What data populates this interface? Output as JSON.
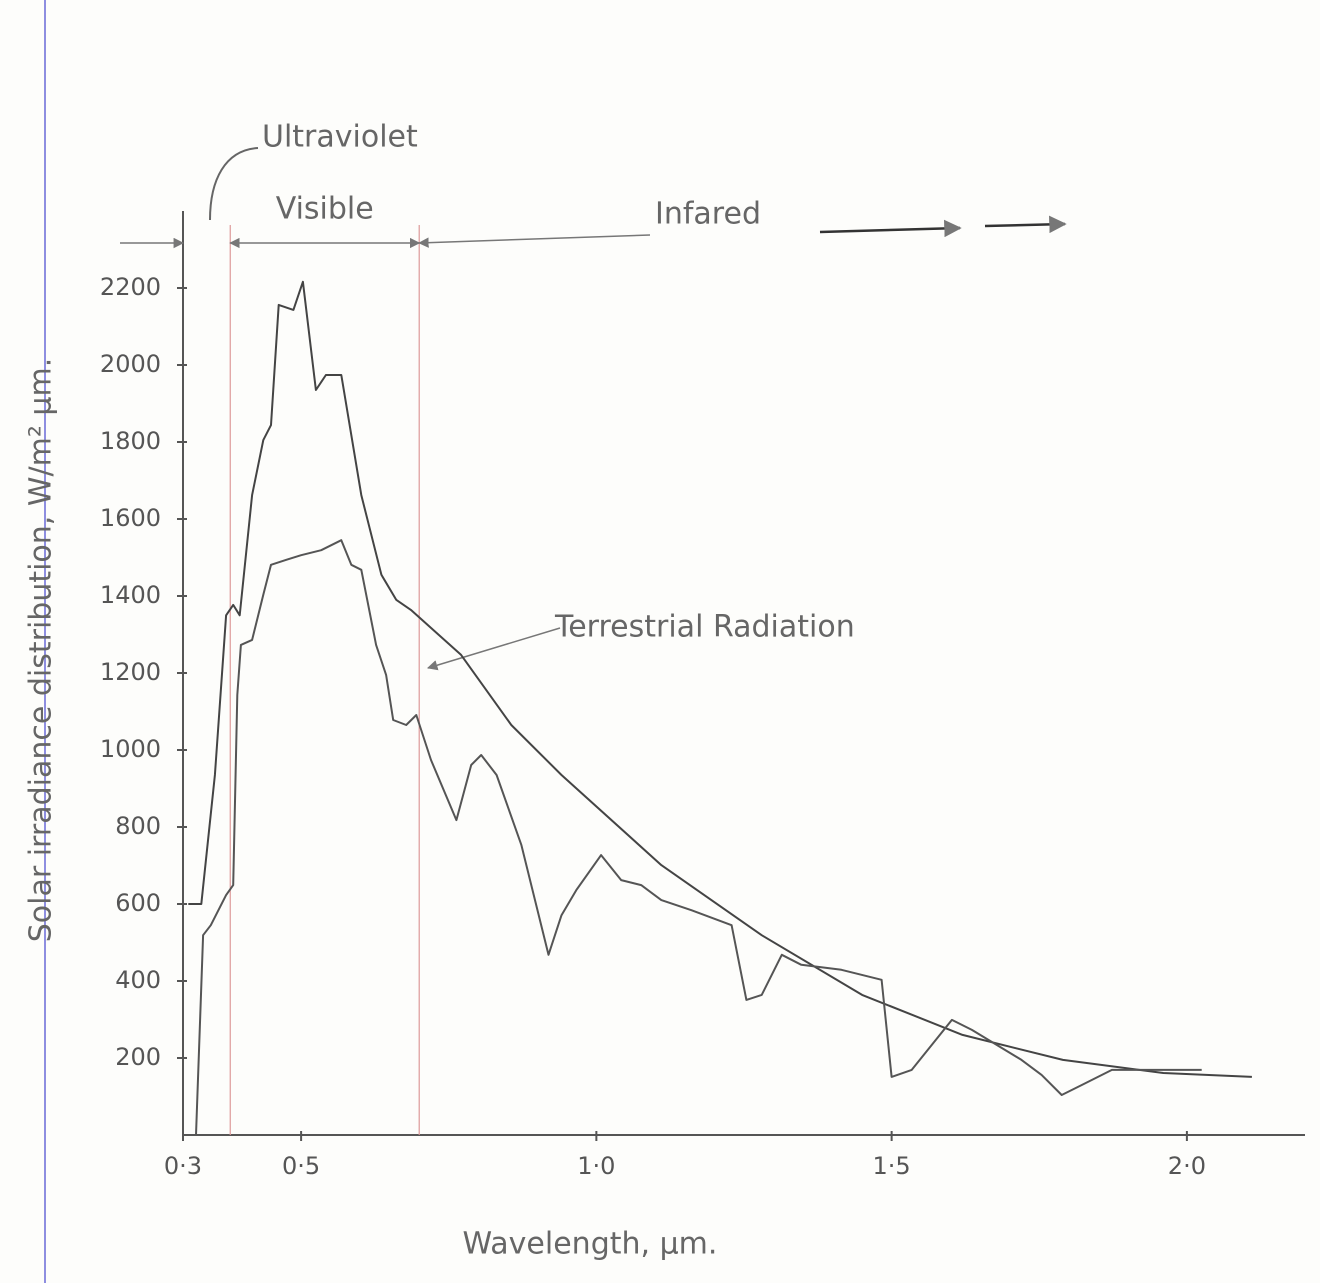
{
  "chart_data": {
    "type": "line",
    "y_label": "Solar irradiance distribution, W/m² µm.",
    "x_label": "Wavelength, µm.",
    "xlim": [
      0.3,
      2.2
    ],
    "ylim": [
      0,
      2400
    ],
    "xticks": [
      {
        "value": 0.3,
        "label": "0·3"
      },
      {
        "value": 0.5,
        "label": "0·5"
      },
      {
        "value": 1.0,
        "label": "1·0"
      },
      {
        "value": 1.5,
        "label": "1·5"
      },
      {
        "value": 2.0,
        "label": "2·0"
      }
    ],
    "yticks": [
      200,
      400,
      600,
      800,
      1000,
      1200,
      1400,
      1600,
      1800,
      2000,
      2200
    ],
    "region_bounds": [
      0.38,
      0.7
    ],
    "annotations": {
      "ultraviolet": "Ultraviolet",
      "visible": "Visible",
      "infrared": "Infared",
      "terrestrial": "Terrestrial Radiation"
    },
    "series": [
      {
        "color": "#444",
        "x": [
          0.309,
          0.331,
          0.354,
          0.373,
          0.385,
          0.396,
          0.417,
          0.436,
          0.449,
          0.462,
          0.487,
          0.503,
          0.525,
          0.542,
          0.568,
          0.602,
          0.636,
          0.661,
          0.686,
          0.771,
          0.856,
          0.941,
          1.11,
          1.28,
          1.45,
          1.62,
          1.79,
          1.96,
          2.11
        ],
        "values": [
          600,
          600,
          935,
          1350,
          1377,
          1350,
          1662,
          1805,
          1844,
          2156,
          2143,
          2216,
          1935,
          1974,
          1974,
          1662,
          1455,
          1390,
          1364,
          1247,
          1065,
          935,
          701,
          519,
          364,
          260,
          195,
          161,
          151
        ]
      },
      {
        "color": "#555",
        "x": [
          0.322,
          0.334,
          0.347,
          0.373,
          0.385,
          0.392,
          0.398,
          0.417,
          0.436,
          0.449,
          0.475,
          0.5,
          0.534,
          0.568,
          0.585,
          0.602,
          0.627,
          0.644,
          0.656,
          0.678,
          0.695,
          0.72,
          0.763,
          0.788,
          0.805,
          0.831,
          0.873,
          0.919,
          0.941,
          0.966,
          1.008,
          1.042,
          1.076,
          1.11,
          1.161,
          1.229,
          1.254,
          1.28,
          1.314,
          1.347,
          1.415,
          1.483,
          1.5,
          1.534,
          1.568,
          1.602,
          1.636,
          1.72,
          1.754,
          1.788,
          1.822,
          1.873,
          1.958,
          2.025
        ],
        "values": [
          0,
          519,
          545,
          623,
          649,
          1143,
          1273,
          1286,
          1403,
          1481,
          1494,
          1506,
          1519,
          1545,
          1481,
          1468,
          1273,
          1195,
          1078,
          1065,
          1091,
          974,
          818,
          961,
          987,
          935,
          753,
          468,
          571,
          636,
          727,
          662,
          649,
          610,
          584,
          545,
          351,
          364,
          468,
          442,
          429,
          403,
          151,
          169,
          234,
          299,
          273,
          195,
          156,
          104,
          130,
          169,
          169,
          169
        ]
      }
    ]
  }
}
